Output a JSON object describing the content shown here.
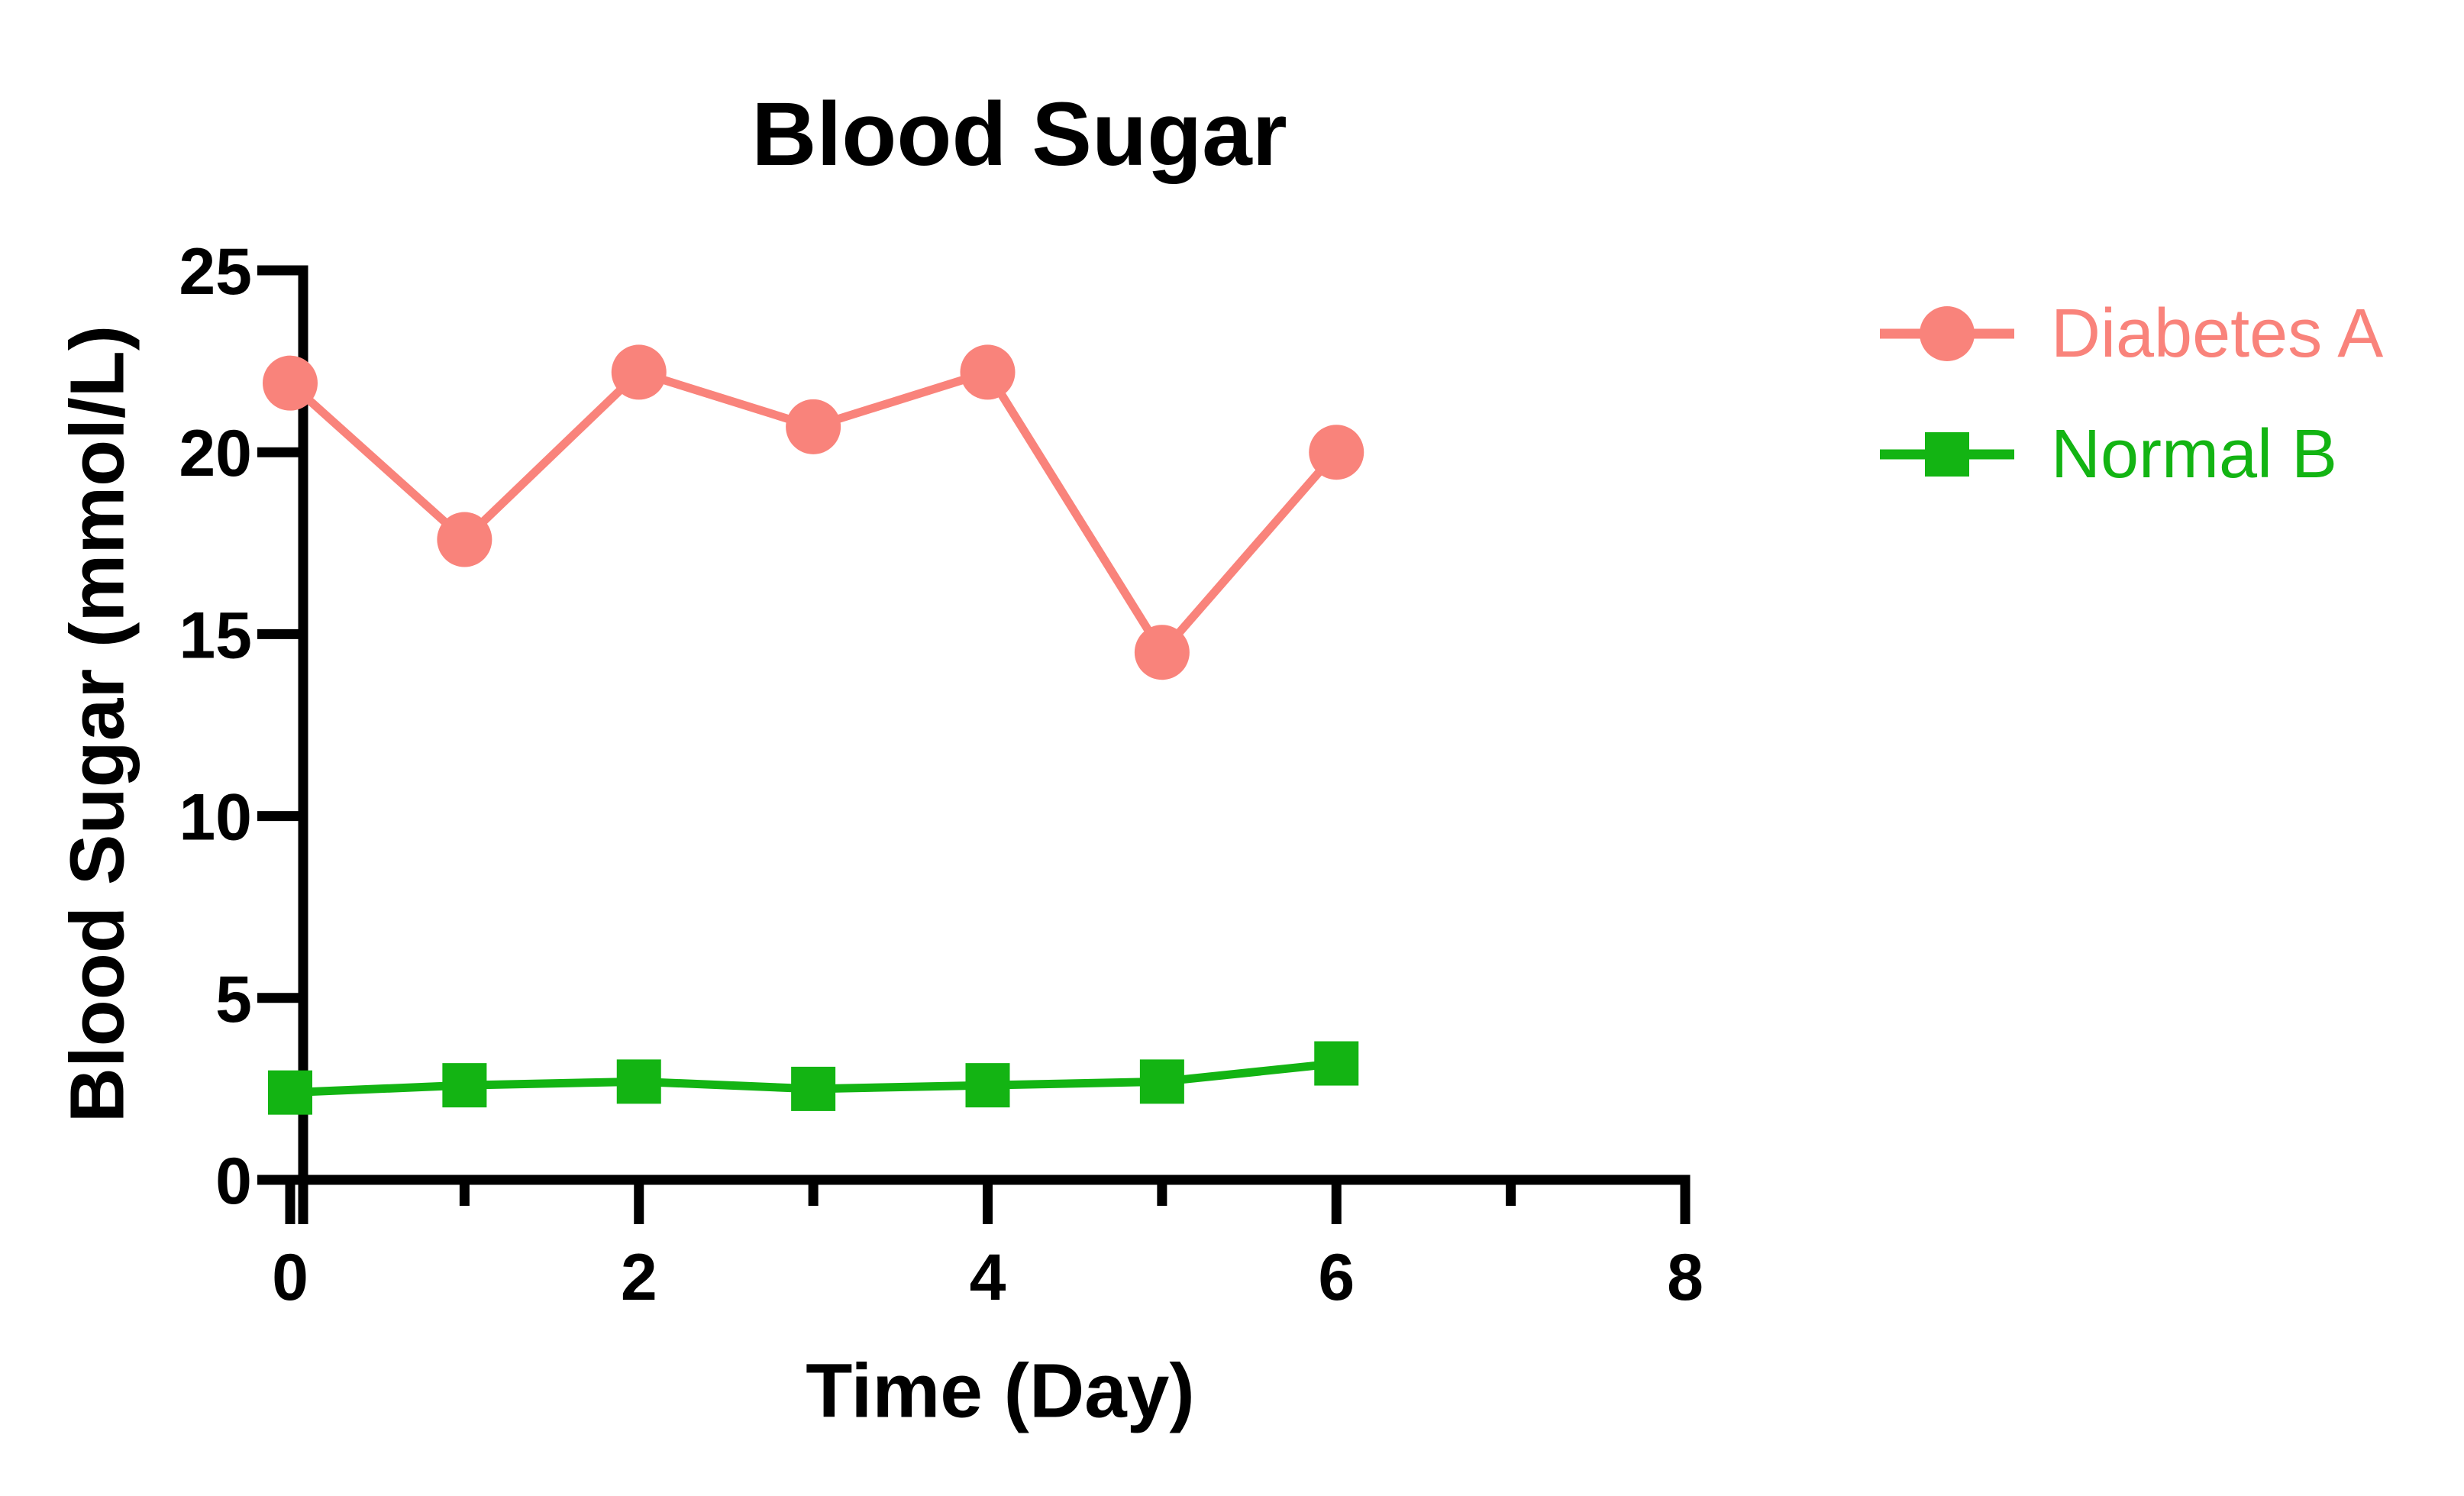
{
  "page": {
    "background": "#ffffff",
    "text_color": "#000000"
  },
  "chart_data": {
    "type": "line",
    "title": "Blood Sugar",
    "xlabel": "Time (Day)",
    "ylabel": "Blood Sugar (mmol/L)",
    "x": [
      0,
      1,
      2,
      3,
      4,
      5,
      6
    ],
    "series": [
      {
        "name": "Diabetes A",
        "color": "#F9837B",
        "marker": "circle",
        "values": [
          21.9,
          17.6,
          22.2,
          20.7,
          22.2,
          14.5,
          20.0
        ]
      },
      {
        "name": "Normal B",
        "color": "#13B413",
        "marker": "square",
        "values": [
          2.4,
          2.6,
          2.7,
          2.5,
          2.6,
          2.7,
          3.2
        ]
      }
    ],
    "xlim": [
      0,
      8
    ],
    "ylim": [
      0,
      25
    ],
    "x_major_ticks": [
      0,
      2,
      4,
      6,
      8
    ],
    "x_minor_ticks": [
      1,
      3,
      5,
      7
    ],
    "y_ticks": [
      0,
      5,
      10,
      15,
      20,
      25
    ],
    "grid": false,
    "legend_position": "right",
    "axis_color": "#000000"
  }
}
